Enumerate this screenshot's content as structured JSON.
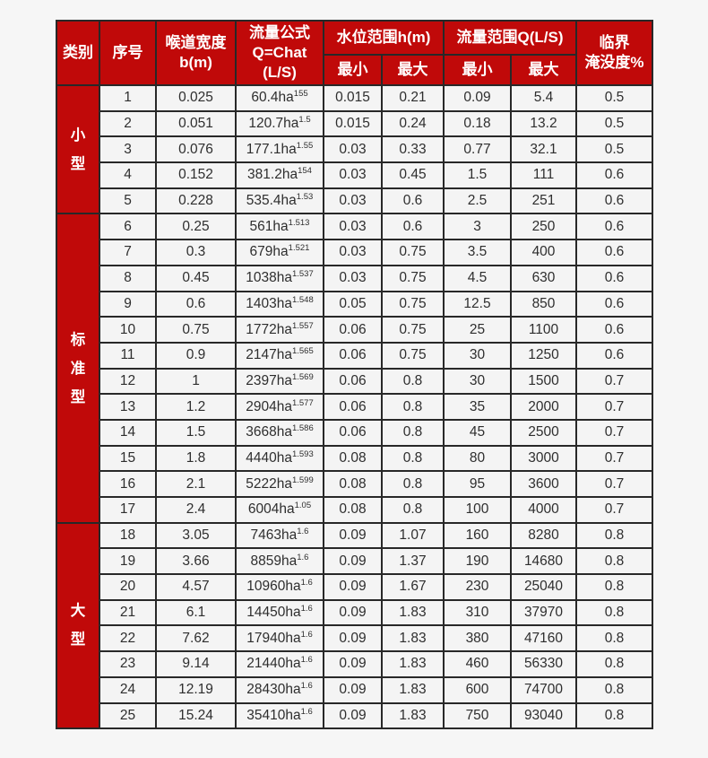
{
  "table": {
    "accent_color": "#c00909",
    "cell_background": "#f4f4f4",
    "border_color": "#282828",
    "headers": {
      "category": "类别",
      "index": "序号",
      "throat_width_line1": "喉道宽度",
      "throat_width_line2": "b(m)",
      "formula_line1": "流量公式",
      "formula_line2": "Q=Chat",
      "formula_line3": "(L/S)",
      "water_level": "水位范围h(m)",
      "flow_range": "流量范围Q(L/S)",
      "min": "最小",
      "max": "最大",
      "critical_line1": "临界",
      "critical_line2": "淹没度%"
    }
  },
  "chart_data": {
    "type": "table",
    "title": "",
    "columns": [
      "类别",
      "序号",
      "喉道宽度b(m)",
      "流量公式Q=Chat(L/S)",
      "水位范围h(m)-最小",
      "水位范围h(m)-最大",
      "流量范围Q(L/S)-最小",
      "流量范围Q(L/S)-最大",
      "临界淹没度%"
    ],
    "groups": [
      {
        "id": "small",
        "label": "小型",
        "rows": [
          {
            "no": "1",
            "b": "0.025",
            "formula_base": "60.4ha",
            "formula_exp": "155",
            "h_min": "0.015",
            "h_max": "0.21",
            "q_min": "0.09",
            "q_max": "5.4",
            "critical": "0.5"
          },
          {
            "no": "2",
            "b": "0.051",
            "formula_base": "120.7ha",
            "formula_exp": "1.5",
            "h_min": "0.015",
            "h_max": "0.24",
            "q_min": "0.18",
            "q_max": "13.2",
            "critical": "0.5"
          },
          {
            "no": "3",
            "b": "0.076",
            "formula_base": "177.1ha",
            "formula_exp": "1.55",
            "h_min": "0.03",
            "h_max": "0.33",
            "q_min": "0.77",
            "q_max": "32.1",
            "critical": "0.5"
          },
          {
            "no": "4",
            "b": "0.152",
            "formula_base": "381.2ha",
            "formula_exp": "154",
            "h_min": "0.03",
            "h_max": "0.45",
            "q_min": "1.5",
            "q_max": "111",
            "critical": "0.6"
          },
          {
            "no": "5",
            "b": "0.228",
            "formula_base": "535.4ha",
            "formula_exp": "1.53",
            "h_min": "0.03",
            "h_max": "0.6",
            "q_min": "2.5",
            "q_max": "251",
            "critical": "0.6"
          }
        ]
      },
      {
        "id": "standard",
        "label": "标准型",
        "rows": [
          {
            "no": "6",
            "b": "0.25",
            "formula_base": "561ha",
            "formula_exp": "1.513",
            "h_min": "0.03",
            "h_max": "0.6",
            "q_min": "3",
            "q_max": "250",
            "critical": "0.6"
          },
          {
            "no": "7",
            "b": "0.3",
            "formula_base": "679ha",
            "formula_exp": "1.521",
            "h_min": "0.03",
            "h_max": "0.75",
            "q_min": "3.5",
            "q_max": "400",
            "critical": "0.6"
          },
          {
            "no": "8",
            "b": "0.45",
            "formula_base": "1038ha",
            "formula_exp": "1.537",
            "h_min": "0.03",
            "h_max": "0.75",
            "q_min": "4.5",
            "q_max": "630",
            "critical": "0.6"
          },
          {
            "no": "9",
            "b": "0.6",
            "formula_base": "1403ha",
            "formula_exp": "1.548",
            "h_min": "0.05",
            "h_max": "0.75",
            "q_min": "12.5",
            "q_max": "850",
            "critical": "0.6"
          },
          {
            "no": "10",
            "b": "0.75",
            "formula_base": "1772ha",
            "formula_exp": "1.557",
            "h_min": "0.06",
            "h_max": "0.75",
            "q_min": "25",
            "q_max": "1100",
            "critical": "0.6"
          },
          {
            "no": "11",
            "b": "0.9",
            "formula_base": "2147ha",
            "formula_exp": "1.565",
            "h_min": "0.06",
            "h_max": "0.75",
            "q_min": "30",
            "q_max": "1250",
            "critical": "0.6"
          },
          {
            "no": "12",
            "b": "1",
            "formula_base": "2397ha",
            "formula_exp": "1.569",
            "h_min": "0.06",
            "h_max": "0.8",
            "q_min": "30",
            "q_max": "1500",
            "critical": "0.7"
          },
          {
            "no": "13",
            "b": "1.2",
            "formula_base": "2904ha",
            "formula_exp": "1.577",
            "h_min": "0.06",
            "h_max": "0.8",
            "q_min": "35",
            "q_max": "2000",
            "critical": "0.7"
          },
          {
            "no": "14",
            "b": "1.5",
            "formula_base": "3668ha",
            "formula_exp": "1.586",
            "h_min": "0.06",
            "h_max": "0.8",
            "q_min": "45",
            "q_max": "2500",
            "critical": "0.7"
          },
          {
            "no": "15",
            "b": "1.8",
            "formula_base": "4440ha",
            "formula_exp": "1.593",
            "h_min": "0.08",
            "h_max": "0.8",
            "q_min": "80",
            "q_max": "3000",
            "critical": "0.7"
          },
          {
            "no": "16",
            "b": "2.1",
            "formula_base": "5222ha",
            "formula_exp": "1.599",
            "h_min": "0.08",
            "h_max": "0.8",
            "q_min": "95",
            "q_max": "3600",
            "critical": "0.7"
          },
          {
            "no": "17",
            "b": "2.4",
            "formula_base": "6004ha",
            "formula_exp": "1.05",
            "h_min": "0.08",
            "h_max": "0.8",
            "q_min": "100",
            "q_max": "4000",
            "critical": "0.7"
          }
        ]
      },
      {
        "id": "large",
        "label": "大型",
        "rows": [
          {
            "no": "18",
            "b": "3.05",
            "formula_base": "7463ha",
            "formula_exp": "1.6",
            "h_min": "0.09",
            "h_max": "1.07",
            "q_min": "160",
            "q_max": "8280",
            "critical": "0.8"
          },
          {
            "no": "19",
            "b": "3.66",
            "formula_base": "8859ha",
            "formula_exp": "1.6",
            "h_min": "0.09",
            "h_max": "1.37",
            "q_min": "190",
            "q_max": "14680",
            "critical": "0.8"
          },
          {
            "no": "20",
            "b": "4.57",
            "formula_base": "10960ha",
            "formula_exp": "1.6",
            "h_min": "0.09",
            "h_max": "1.67",
            "q_min": "230",
            "q_max": "25040",
            "critical": "0.8"
          },
          {
            "no": "21",
            "b": "6.1",
            "formula_base": "14450ha",
            "formula_exp": "1.6",
            "h_min": "0.09",
            "h_max": "1.83",
            "q_min": "310",
            "q_max": "37970",
            "critical": "0.8"
          },
          {
            "no": "22",
            "b": "7.62",
            "formula_base": "17940ha",
            "formula_exp": "1.6",
            "h_min": "0.09",
            "h_max": "1.83",
            "q_min": "380",
            "q_max": "47160",
            "critical": "0.8"
          },
          {
            "no": "23",
            "b": "9.14",
            "formula_base": "21440ha",
            "formula_exp": "1.6",
            "h_min": "0.09",
            "h_max": "1.83",
            "q_min": "460",
            "q_max": "56330",
            "critical": "0.8"
          },
          {
            "no": "24",
            "b": "12.19",
            "formula_base": "28430ha",
            "formula_exp": "1.6",
            "h_min": "0.09",
            "h_max": "1.83",
            "q_min": "600",
            "q_max": "74700",
            "critical": "0.8"
          },
          {
            "no": "25",
            "b": "15.24",
            "formula_base": "35410ha",
            "formula_exp": "1.6",
            "h_min": "0.09",
            "h_max": "1.83",
            "q_min": "750",
            "q_max": "93040",
            "critical": "0.8"
          }
        ]
      }
    ]
  }
}
